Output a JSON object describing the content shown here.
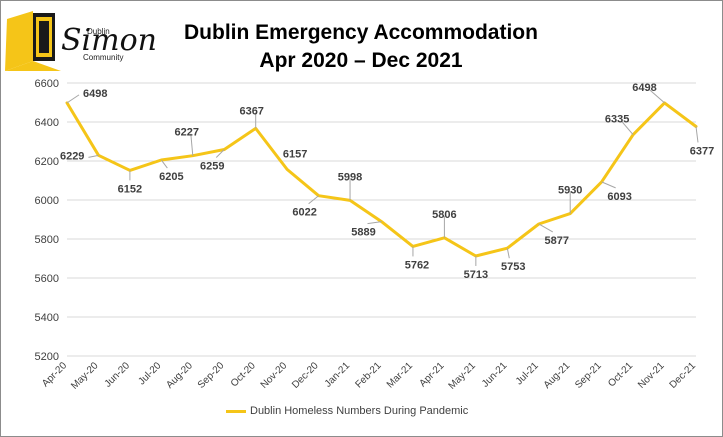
{
  "logo": {
    "name": "Simon",
    "line1": "Dublin",
    "line2": "Community"
  },
  "title_line1": "Dublin Emergency Accommodation",
  "title_line2": "Apr 2020 – Dec 2021",
  "colors": {
    "series": "#f5c518",
    "logo": "#f5c518",
    "grid": "#d9d9d9",
    "text": "#404040"
  },
  "chart_data": {
    "type": "line",
    "title": "Dublin Emergency Accommodation Apr 2020 – Dec 2021",
    "categories": [
      "Apr-20",
      "May-20",
      "Jun-20",
      "Jul-20",
      "Aug-20",
      "Sep-20",
      "Oct-20",
      "Nov-20",
      "Dec-20",
      "Jan-21",
      "Feb-21",
      "Mar-21",
      "Apr-21",
      "May-21",
      "Jun-21",
      "Jul-21",
      "Aug-21",
      "Sep-21",
      "Oct-21",
      "Nov-21",
      "Dec-21"
    ],
    "series": [
      {
        "name": "Dublin Homeless Numbers During Pandemic",
        "values": [
          6498,
          6229,
          6152,
          6205,
          6227,
          6259,
          6367,
          6157,
          6022,
          5998,
          5889,
          5762,
          5806,
          5713,
          5753,
          5877,
          5930,
          6093,
          6335,
          6498,
          6377
        ]
      }
    ],
    "ylim": [
      5200,
      6600
    ],
    "yticks": [
      5200,
      5400,
      5600,
      5800,
      6000,
      6200,
      6400,
      6600
    ],
    "grid": true,
    "legend": "bottom"
  }
}
